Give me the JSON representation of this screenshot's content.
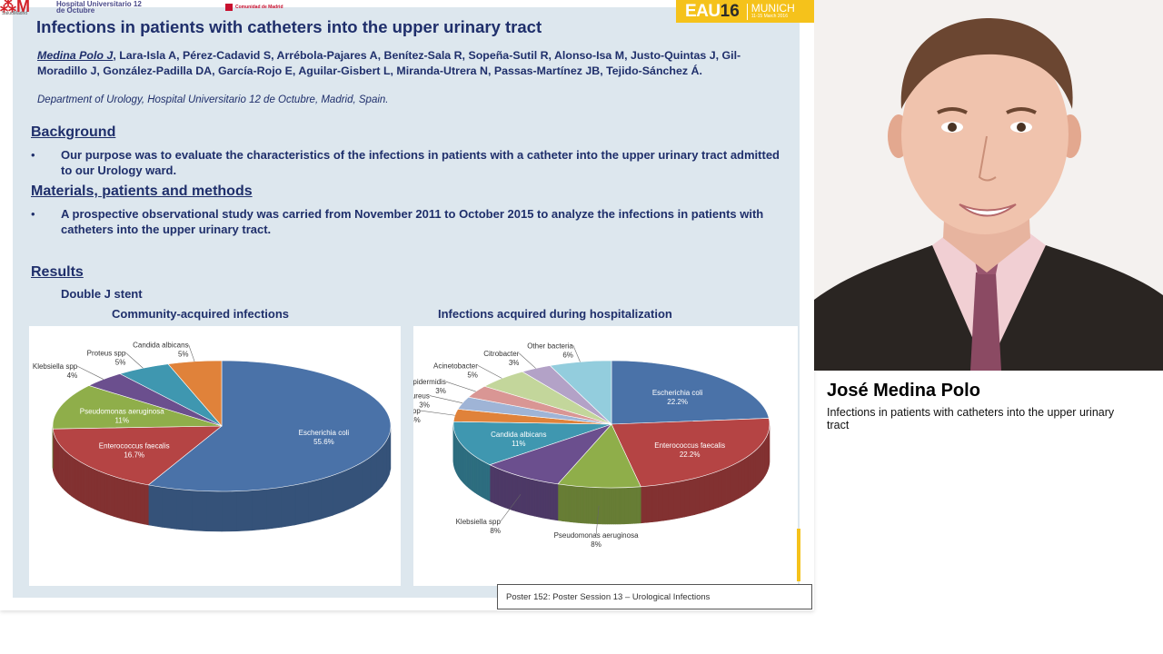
{
  "header": {
    "hospital_name": "Hospital Universitario 12 de Octubre",
    "salud_madrid": "SaludMadrid",
    "comunidad": "Comunidad de Madrid",
    "eau_brand": "EAU",
    "eau_number": "16",
    "eau_city": "MUNICH",
    "eau_dates": "11-15 March 2016"
  },
  "poster": {
    "title": "Infections in patients with catheters into the upper urinary tract",
    "lead_author": "Medina Polo J",
    "authors_rest": ", Lara-Isla A, Pérez-Cadavid S, Arrébola-Pajares A, Benítez-Sala R, Sopeña-Sutil R, Alonso-Isa M, Justo-Quintas J, Gil-Moradillo J, González-Padilla DA, García-Rojo E, Aguilar-Gisbert L, Miranda-Utrera N, Passas-Martínez JB, Tejido-Sánchez Á.",
    "department": "Department of Urology, Hospital Universitario 12 de Octubre, Madrid, Spain.",
    "background_title": "Background",
    "background_text": "Our purpose was to evaluate the characteristics of the infections in patients with a catheter into the upper urinary tract admitted to our Urology ward.",
    "methods_title": "Materials, patients and methods",
    "methods_text": "A prospective observational study was carried from November 2011 to October 2015 to analyze the infections in patients with catheters into the upper urinary tract.",
    "results_title": "Results",
    "results_subtitle": "Double J stent",
    "bullet_char": "•",
    "footer": "Poster 152: Poster Session 13 – Urological Infections"
  },
  "chart_data": [
    {
      "type": "pie",
      "title": "Community-acquired infections",
      "labels": [
        "Escherichia coli",
        "Enterococcus faecalis",
        "Pseudomonas aeruginosa",
        "Klebsiella spp",
        "Proteus spp",
        "Candida albicans"
      ],
      "values": [
        55.6,
        16.7,
        11,
        4,
        5,
        5
      ],
      "value_labels": [
        "55.6%",
        "16.7%",
        "11%",
        "4%",
        "5%",
        "5%"
      ],
      "colors": [
        "#4a72a8",
        "#b54444",
        "#8fae4a",
        "#6b4f8e",
        "#3f97b0",
        "#e0823a"
      ]
    },
    {
      "type": "pie",
      "title": "Infections acquired during hospitalization",
      "labels": [
        "Escherichia coli",
        "Enterococcus faecalis",
        "Pseudomonas aeruginosa",
        "Klebsiella spp",
        "Candida albicans",
        "Enterobacter spp",
        "Staphylococcus aureus",
        "Staphylococcus epidermidis",
        "Acinetobacter",
        "Citrobacter",
        "Other bacteria"
      ],
      "values": [
        22.2,
        22.2,
        8,
        8,
        11,
        3,
        3,
        3,
        5,
        3,
        6
      ],
      "value_labels": [
        "22.2%",
        "22.2%",
        "8%",
        "8%",
        "11%",
        "3%",
        "3%",
        "3%",
        "5%",
        "3%",
        "6%"
      ],
      "colors": [
        "#4a72a8",
        "#b54444",
        "#8fae4a",
        "#6b4f8e",
        "#3f97b0",
        "#e0823a",
        "#9fb4d6",
        "#d99694",
        "#c3d69b",
        "#b3a2c7",
        "#93cddd"
      ]
    }
  ],
  "speaker": {
    "name": "José Medina Polo",
    "description": "Infections in patients with catheters into the upper urinary tract"
  }
}
